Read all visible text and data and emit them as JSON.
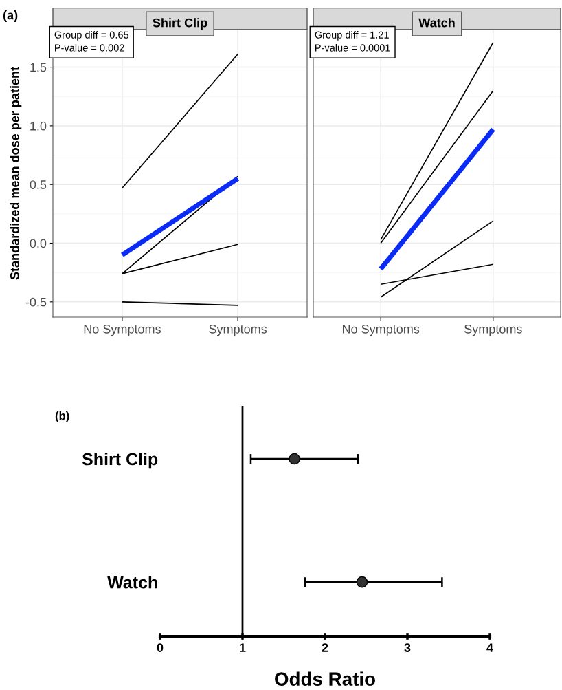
{
  "chart_data": [
    {
      "type": "line",
      "title": "Shirt Clip",
      "ylabel": "Standardized mean dose per patient",
      "categories": [
        "No Symptoms",
        "Symptoms"
      ],
      "ylim": [
        -0.63,
        1.82
      ],
      "yticks": [
        -0.5,
        {
          "value": 0,
          "label": "0.0"
        },
        0.5,
        {
          "value": 1,
          "label": "1.0"
        },
        1.5
      ],
      "grid": true,
      "marker": "none",
      "line_style": "solid",
      "annotations": [
        "Group diff = 0.65\nP-value = 0.002",
        "(a)"
      ],
      "series": [
        {
          "color": "#000000",
          "values": [
            0.47,
            1.61
          ]
        },
        {
          "color": "#000000",
          "values": [
            -0.26,
            0.57
          ]
        },
        {
          "color": "#000000",
          "values": [
            -0.26,
            -0.01
          ]
        },
        {
          "color": "#000000",
          "values": [
            -0.5,
            -0.53
          ]
        },
        {
          "color": "#0a2bf5",
          "values": [
            -0.1,
            0.55
          ]
        }
      ]
    },
    {
      "type": "line",
      "title": "Watch",
      "categories": [
        "No Symptoms",
        "Symptoms"
      ],
      "ylim": [
        -0.63,
        1.82
      ],
      "yticks": [
        -0.5,
        0,
        0.5,
        1,
        1.5
      ],
      "grid": true,
      "marker": "none",
      "line_style": "solid",
      "tick_labels": "x",
      "annotations": [
        "Group diff = 1.21\nP-value = 0.0001"
      ],
      "series": [
        {
          "color": "#000000",
          "values": [
            0.03,
            1.71
          ]
        },
        {
          "color": "#000000",
          "values": [
            0.0,
            1.3
          ]
        },
        {
          "color": "#000000",
          "values": [
            -0.35,
            -0.18
          ]
        },
        {
          "color": "#000000",
          "values": [
            -0.46,
            0.19
          ]
        },
        {
          "color": "#0a2bf5",
          "values": [
            -0.22,
            0.97
          ]
        }
      ]
    },
    {
      "type": "scatter",
      "orientation": "horizontal",
      "xlabel": "Odds Ratio",
      "categories": [
        "Shirt Clip",
        "Watch"
      ],
      "values": [
        1.63,
        2.45
      ],
      "errors": [
        [
          1.1,
          2.4
        ],
        [
          1.76,
          3.42
        ]
      ],
      "color": "#333333",
      "marker": "circle",
      "xlim": [
        0,
        4
      ],
      "xticks": [
        0,
        1,
        2,
        3,
        4
      ],
      "ref_lines": [
        {
          "axis": "x",
          "value": 1,
          "color": "#000000"
        }
      ],
      "annotations": [
        "(b)"
      ]
    }
  ]
}
